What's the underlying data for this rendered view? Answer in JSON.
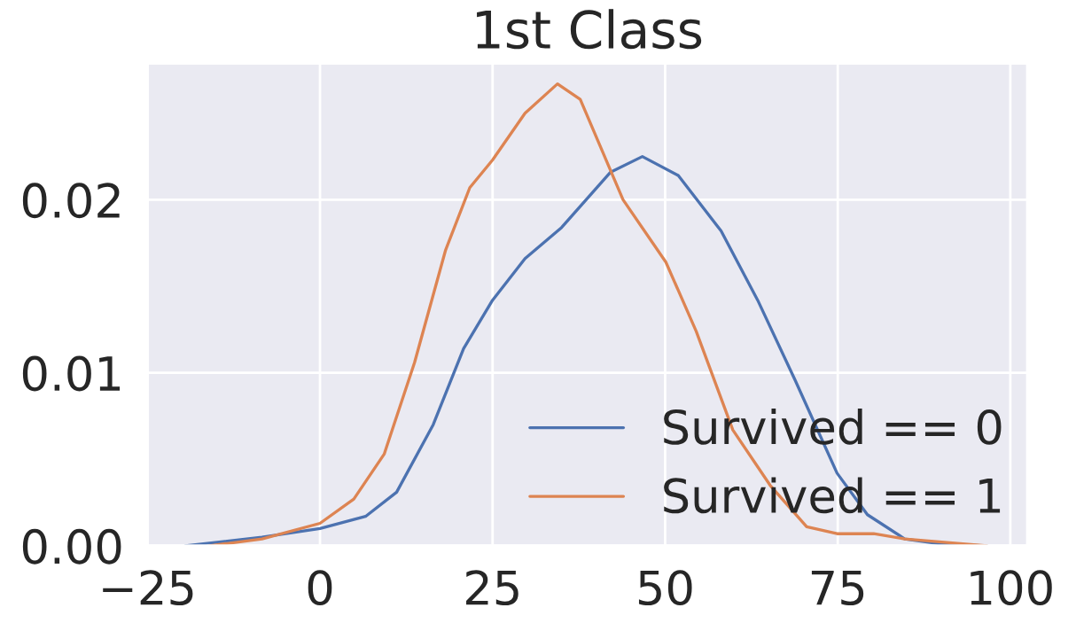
{
  "chart_data": {
    "type": "line",
    "title": "1st Class",
    "xlim": [
      -25,
      102.5
    ],
    "ylim": [
      0,
      0.0279
    ],
    "xticks": [
      {
        "value": -25,
        "label": "−25"
      },
      0,
      25,
      50,
      75,
      100
    ],
    "yticks": [
      {
        "value": 0,
        "label": "0.00"
      },
      {
        "value": 0.01,
        "label": "0.01"
      },
      {
        "value": 0.02,
        "label": "0.02"
      }
    ],
    "grid": true,
    "legend": "bottom right",
    "marker": "none",
    "line_style": "solid",
    "series": [
      {
        "name": "Survived == 0",
        "color": "#4c72b0",
        "x": [
          -19.5,
          -8.4,
          0,
          6.6,
          11.1,
          16.4,
          20.8,
          25,
          29.7,
          35,
          42.1,
          46.7,
          51.9,
          58.1,
          63.4,
          68.8,
          74.9,
          79.3,
          84.7,
          90,
          96.6
        ],
        "values": [
          0,
          0.0005,
          0.001,
          0.0017,
          0.0031,
          0.007,
          0.0114,
          0.0142,
          0.0166,
          0.0184,
          0.0216,
          0.0225,
          0.0214,
          0.0182,
          0.0142,
          0.0096,
          0.0042,
          0.0018,
          0.0004,
          0.0001,
          0
        ]
      },
      {
        "name": "Survived == 1",
        "color": "#dd8452",
        "x": [
          -16,
          -8.4,
          0,
          4.9,
          9.3,
          13.7,
          18.2,
          21.7,
          25,
          29.7,
          34.4,
          37.7,
          43.9,
          50.1,
          54.5,
          59.8,
          65.2,
          70.5,
          74.9,
          80.2,
          84.7,
          96.6
        ],
        "values": [
          0,
          0.0004,
          0.0013,
          0.0027,
          0.0053,
          0.0106,
          0.0171,
          0.0207,
          0.0223,
          0.025,
          0.0267,
          0.0258,
          0.02,
          0.0164,
          0.0124,
          0.0067,
          0.0035,
          0.0011,
          0.0007,
          0.0007,
          0.0004,
          0
        ]
      }
    ]
  }
}
